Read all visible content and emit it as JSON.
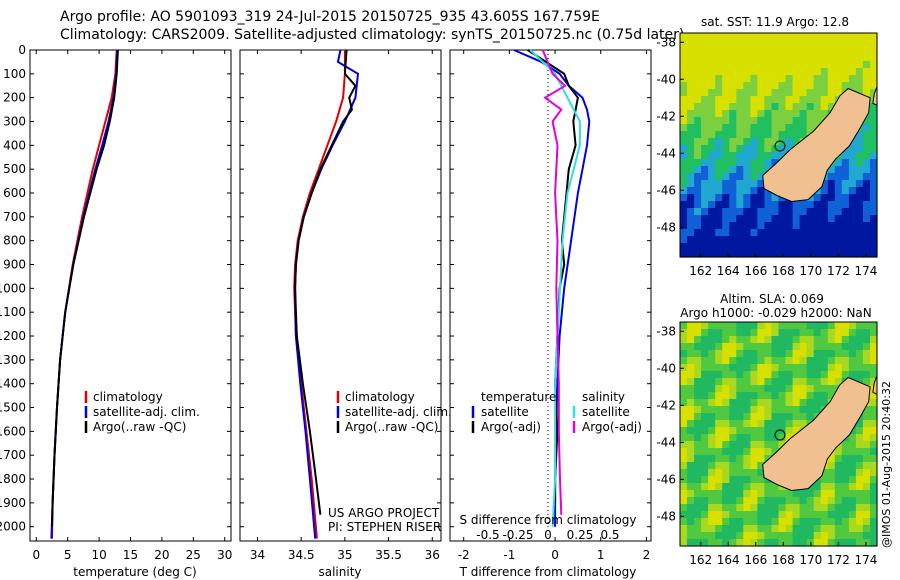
{
  "header": {
    "title1": "Argo profile: AO 5901093_319 24-Jul-2015 20150725_935 43.605S 167.759E",
    "title2": "Climatology: CARS2009. Satellite-adjusted climatology: synTS_20150725.nc (0.75d later)"
  },
  "colors": {
    "climatology": "#e00000",
    "satellite": "#0000e0",
    "argo": "#000000",
    "satellite_diff": "#30e0e0",
    "argo_diff": "#e000e0",
    "land": "#f0c090"
  },
  "chart_data": [
    {
      "type": "line",
      "xlabel": "temperature (deg C)",
      "xticks": [
        0,
        5,
        10,
        15,
        20,
        25,
        30
      ],
      "xlim": [
        -1,
        31
      ],
      "yticks": [
        0,
        100,
        200,
        300,
        400,
        500,
        600,
        700,
        800,
        900,
        1000,
        1100,
        1200,
        1300,
        1400,
        1500,
        1600,
        1700,
        1800,
        1900,
        2000
      ],
      "ylim": [
        0,
        2060
      ],
      "legend": [
        "climatology",
        "satellite-adj. clim.",
        "Argo(..raw -QC)"
      ],
      "series": [
        {
          "name": "climatology",
          "depth": [
            0,
            100,
            200,
            300,
            400,
            500,
            700,
            900,
            1100,
            1300,
            1500,
            1700,
            1900,
            2050
          ],
          "values": [
            12.8,
            12.6,
            12.0,
            11.0,
            10.0,
            9.0,
            7.3,
            5.8,
            4.6,
            3.8,
            3.3,
            2.9,
            2.6,
            2.5
          ]
        },
        {
          "name": "satellite-adj. clim.",
          "depth": [
            0,
            100,
            200,
            300,
            400,
            500,
            700,
            900,
            1100,
            1300,
            1500,
            1700,
            1900,
            2050
          ],
          "values": [
            12.9,
            12.7,
            12.3,
            11.5,
            10.5,
            9.4,
            7.5,
            5.9,
            4.6,
            3.8,
            3.3,
            2.9,
            2.6,
            2.4
          ]
        },
        {
          "name": "Argo(..raw -QC)",
          "depth": [
            0,
            100,
            200,
            300,
            400,
            500,
            700,
            900,
            1100,
            1300,
            1500,
            1700,
            1900,
            2000
          ],
          "values": [
            13.0,
            12.8,
            12.4,
            11.7,
            10.8,
            9.6,
            7.6,
            5.9,
            4.6,
            3.8,
            3.3,
            2.9,
            2.6,
            2.5
          ]
        }
      ]
    },
    {
      "type": "line",
      "xlabel": "salinity",
      "xticks": [
        34,
        34.5,
        35,
        35.5,
        36
      ],
      "xlim": [
        33.8,
        36.1
      ],
      "ylim": [
        0,
        2060
      ],
      "legend": [
        "climatology",
        "satellite-adj. clim.",
        "Argo(..raw -QC)"
      ],
      "annotation": [
        "US ARGO PROJECT",
        "PI: STEPHEN RISER"
      ],
      "series": [
        {
          "name": "climatology",
          "depth": [
            0,
            100,
            200,
            300,
            400,
            500,
            600,
            700,
            800,
            900,
            1000,
            1200,
            1400,
            1600,
            1800,
            2050
          ],
          "values": [
            35.0,
            35.0,
            34.98,
            34.9,
            34.8,
            34.7,
            34.6,
            34.52,
            34.46,
            34.43,
            34.42,
            34.44,
            34.5,
            34.56,
            34.62,
            34.68
          ]
        },
        {
          "name": "satellite-adj. clim.",
          "depth": [
            0,
            50,
            100,
            200,
            300,
            400,
            500,
            600,
            700,
            800,
            900,
            1000,
            1200,
            1400,
            1600,
            1800,
            2050
          ],
          "values": [
            34.95,
            34.92,
            35.15,
            35.12,
            35.0,
            34.86,
            34.73,
            34.62,
            34.53,
            34.47,
            34.44,
            34.43,
            34.44,
            34.49,
            34.55,
            34.6,
            34.66
          ]
        },
        {
          "name": "Argo(..raw -QC)",
          "depth": [
            0,
            100,
            150,
            200,
            250,
            300,
            400,
            500,
            600,
            700,
            800,
            900,
            1000,
            1200,
            1400,
            1600,
            1800,
            1950
          ],
          "values": [
            35.02,
            35.0,
            35.12,
            35.05,
            35.08,
            34.98,
            34.85,
            34.72,
            34.62,
            34.53,
            34.47,
            34.44,
            34.43,
            34.45,
            34.52,
            34.6,
            34.67,
            34.72
          ]
        }
      ]
    },
    {
      "type": "line",
      "xlabel": "T difference from climatology",
      "xticks": [
        -2,
        -1,
        0,
        1,
        2
      ],
      "xlim": [
        -2.3,
        2.1
      ],
      "top_xlabel": "S difference from climatology",
      "top_xticks": [
        "-0.5",
        "-0.25",
        "0",
        "0.25",
        "0.5"
      ],
      "ylim": [
        0,
        2060
      ],
      "legend_temperature": {
        "heading": "temperature",
        "items": [
          "satellite",
          "Argo(-adj)"
        ]
      },
      "legend_salinity": {
        "heading": "salinity",
        "items": [
          "satellite",
          "Argo(-adj)"
        ]
      },
      "series": [
        {
          "name": "satellite",
          "depth": [
            0,
            50,
            100,
            150,
            200,
            250,
            300,
            400,
            500,
            600,
            800,
            1000,
            1200,
            1400,
            1600,
            1800,
            2000
          ],
          "values": [
            -0.9,
            -0.3,
            0.1,
            0.3,
            0.6,
            0.7,
            0.75,
            0.7,
            0.6,
            0.5,
            0.35,
            0.2,
            0.1,
            0.05,
            0.02,
            0.0,
            0.0
          ]
        },
        {
          "name": "Argo(-adj)",
          "depth": [
            0,
            100,
            150,
            200,
            300,
            400,
            500,
            600,
            700,
            800,
            900,
            1000,
            1200,
            1400,
            1600,
            1800,
            1900
          ],
          "values": [
            -0.6,
            0.2,
            0.3,
            0.5,
            0.4,
            0.45,
            0.3,
            0.25,
            0.2,
            0.15,
            0.2,
            0.1,
            0.05,
            0.0,
            0.05,
            0.0,
            0.0
          ]
        },
        {
          "name": "satellite (S)",
          "depth": [
            0,
            50,
            100,
            200,
            300,
            400,
            600,
            800,
            1000,
            1200,
            1400,
            1600,
            1800,
            2000
          ],
          "values": [
            -0.2,
            -0.1,
            0.0,
            0.1,
            0.2,
            0.2,
            0.1,
            0.06,
            0.04,
            0.02,
            0.0,
            0.0,
            0.0,
            -0.02
          ]
        },
        {
          "name": "Argo(-adj) (S)",
          "depth": [
            0,
            100,
            150,
            200,
            250,
            300,
            400,
            600,
            800,
            1000,
            1200,
            1400,
            1600,
            1800,
            1950
          ],
          "values": [
            -0.1,
            -0.02,
            0.08,
            -0.08,
            0.05,
            -0.02,
            0.02,
            0.0,
            0.02,
            0.01,
            0.02,
            0.03,
            0.03,
            0.04,
            0.05
          ]
        }
      ]
    },
    {
      "type": "heatmap",
      "title": "sat. SST: 11.9 Argo: 12.8",
      "xticks": [
        162,
        164,
        166,
        168,
        170,
        172,
        174
      ],
      "yticks": [
        -38,
        -40,
        -42,
        -44,
        -46,
        -48
      ],
      "xlim": [
        160.5,
        174.8
      ],
      "ylim": [
        -49.6,
        -37.5
      ],
      "float_position": {
        "lon": 167.759,
        "lat": -43.605
      }
    },
    {
      "type": "heatmap",
      "title": "Altim. SLA: 0.069",
      "subtitle": "Argo h1000: -0.029 h2000: NaN",
      "xticks": [
        162,
        164,
        166,
        168,
        170,
        172,
        174
      ],
      "yticks": [
        -38,
        -40,
        -42,
        -44,
        -46,
        -48
      ],
      "xlim": [
        160.5,
        174.8
      ],
      "ylim": [
        -49.6,
        -37.5
      ],
      "float_position": {
        "lon": 167.759,
        "lat": -43.605
      }
    }
  ],
  "stamp": "@IMOS 01-Aug-2015 20:40:32"
}
